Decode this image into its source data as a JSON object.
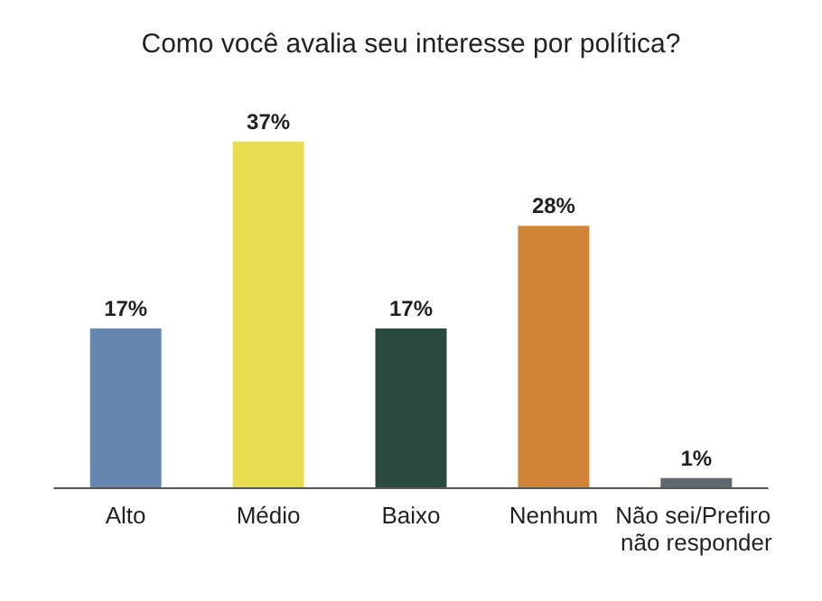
{
  "chart_data": {
    "type": "bar",
    "title": "Como você avalia seu interesse por política?",
    "categories": [
      "Alto",
      "Médio",
      "Baixo",
      "Nenhum",
      "Não sei/Prefiro não responder"
    ],
    "values": [
      17,
      37,
      17,
      28,
      1
    ],
    "colors": [
      "#6688b0",
      "#e8dc50",
      "#2a4a3e",
      "#d08438",
      "#5f6770"
    ],
    "value_labels": [
      "17%",
      "37%",
      "17%",
      "28%",
      "1%"
    ]
  }
}
